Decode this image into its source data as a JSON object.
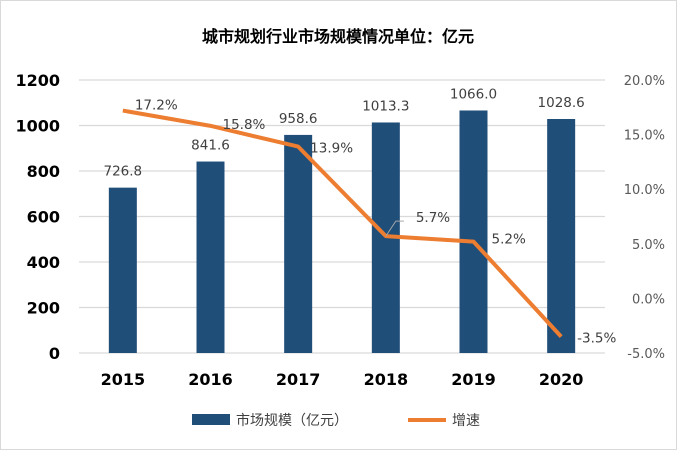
{
  "chart_data": {
    "type": "bar+line",
    "title": "城市规划行业市场规模情况单位：亿元",
    "categories": [
      "2015",
      "2016",
      "2017",
      "2018",
      "2019",
      "2020"
    ],
    "series": [
      {
        "name": "市场规模（亿元）",
        "type": "bar",
        "axis": "left",
        "color": "#1f4e79",
        "values": [
          726.8,
          841.6,
          958.6,
          1013.3,
          1066.0,
          1028.6
        ],
        "labels": [
          "726.8",
          "841.6",
          "958.6",
          "1013.3",
          "1066.0",
          "1028.6"
        ]
      },
      {
        "name": "增速",
        "type": "line",
        "axis": "right",
        "color": "#ed7d31",
        "values": [
          17.2,
          15.8,
          13.9,
          5.7,
          5.2,
          -3.5
        ],
        "labels": [
          "17.2%",
          "15.8%",
          "13.9%",
          "5.7%",
          "5.2%",
          "-3.5%"
        ]
      }
    ],
    "left_axis": {
      "min": 0,
      "max": 1200,
      "ticks": [
        "0",
        "200",
        "400",
        "600",
        "800",
        "1000",
        "1200"
      ]
    },
    "right_axis": {
      "min": -5,
      "max": 20,
      "ticks": [
        "-5.0%",
        "0.0%",
        "5.0%",
        "10.0%",
        "15.0%",
        "20.0%"
      ]
    },
    "grid": true,
    "legend": "bottom"
  }
}
